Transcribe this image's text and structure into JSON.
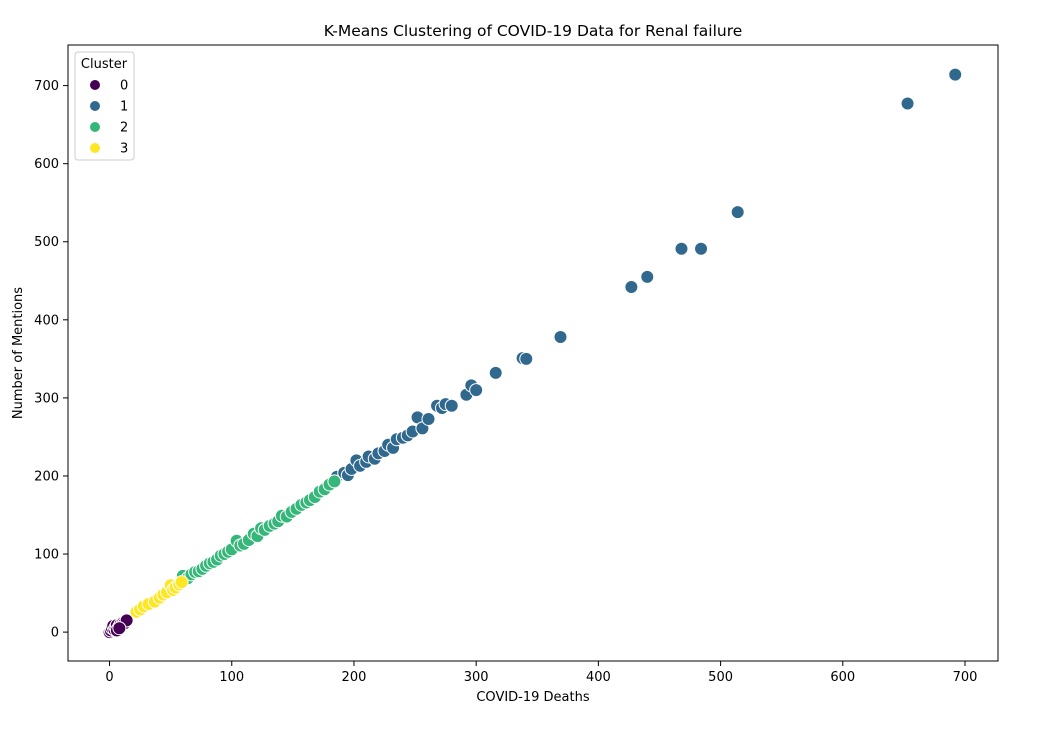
{
  "chart_data": {
    "type": "scatter",
    "title": "K-Means Clustering of COVID-19 Data for Renal failure",
    "xlabel": "COVID-19 Deaths",
    "ylabel": "Number of Mentions",
    "xlim": [
      -34,
      727
    ],
    "ylim": [
      -37,
      752
    ],
    "xticks": [
      0,
      100,
      200,
      300,
      400,
      500,
      600,
      700
    ],
    "yticks": [
      0,
      100,
      200,
      300,
      400,
      500,
      600,
      700
    ],
    "grid": false,
    "legend": {
      "title": "Cluster",
      "placement": "top-left",
      "entries": [
        "0",
        "1",
        "2",
        "3"
      ]
    },
    "colors": {
      "0": "#440154",
      "1": "#31688e",
      "2": "#35b779",
      "3": "#fde725"
    },
    "series": [
      {
        "name": "0",
        "points": [
          [
            0,
            0
          ],
          [
            1,
            2
          ],
          [
            2,
            5
          ],
          [
            3,
            8
          ],
          [
            4,
            3
          ],
          [
            5,
            6
          ],
          [
            6,
            9
          ],
          [
            7,
            4
          ],
          [
            8,
            7
          ],
          [
            9,
            10
          ],
          [
            10,
            8
          ],
          [
            11,
            12
          ],
          [
            12,
            11
          ],
          [
            14,
            15
          ],
          [
            6,
            2
          ],
          [
            8,
            5
          ]
        ]
      },
      {
        "name": "1",
        "points": [
          [
            186,
            199
          ],
          [
            192,
            204
          ],
          [
            195,
            201
          ],
          [
            198,
            209
          ],
          [
            202,
            220
          ],
          [
            205,
            213
          ],
          [
            210,
            218
          ],
          [
            212,
            225
          ],
          [
            217,
            222
          ],
          [
            220,
            229
          ],
          [
            225,
            232
          ],
          [
            228,
            240
          ],
          [
            232,
            236
          ],
          [
            235,
            247
          ],
          [
            240,
            249
          ],
          [
            244,
            252
          ],
          [
            248,
            257
          ],
          [
            252,
            275
          ],
          [
            256,
            261
          ],
          [
            261,
            273
          ],
          [
            268,
            290
          ],
          [
            272,
            287
          ],
          [
            275,
            292
          ],
          [
            280,
            290
          ],
          [
            292,
            304
          ],
          [
            296,
            316
          ],
          [
            300,
            310
          ],
          [
            316,
            332
          ],
          [
            338,
            351
          ],
          [
            341,
            350
          ],
          [
            369,
            378
          ],
          [
            427,
            442
          ],
          [
            440,
            455
          ],
          [
            468,
            491
          ],
          [
            484,
            491
          ],
          [
            514,
            538
          ],
          [
            653,
            677
          ],
          [
            692,
            714
          ]
        ]
      },
      {
        "name": "2",
        "points": [
          [
            60,
            72
          ],
          [
            64,
            69
          ],
          [
            67,
            74
          ],
          [
            70,
            77
          ],
          [
            73,
            78
          ],
          [
            76,
            81
          ],
          [
            79,
            85
          ],
          [
            82,
            88
          ],
          [
            85,
            90
          ],
          [
            88,
            93
          ],
          [
            91,
            98
          ],
          [
            94,
            100
          ],
          [
            97,
            103
          ],
          [
            100,
            106
          ],
          [
            104,
            117
          ],
          [
            107,
            111
          ],
          [
            110,
            113
          ],
          [
            114,
            118
          ],
          [
            118,
            126
          ],
          [
            121,
            123
          ],
          [
            124,
            133
          ],
          [
            127,
            131
          ],
          [
            131,
            136
          ],
          [
            135,
            139
          ],
          [
            138,
            142
          ],
          [
            141,
            149
          ],
          [
            145,
            148
          ],
          [
            149,
            154
          ],
          [
            153,
            158
          ],
          [
            157,
            163
          ],
          [
            161,
            166
          ],
          [
            164,
            169
          ],
          [
            168,
            173
          ],
          [
            172,
            180
          ],
          [
            176,
            183
          ],
          [
            180,
            189
          ],
          [
            184,
            193
          ]
        ]
      },
      {
        "name": "3",
        "points": [
          [
            22,
            26
          ],
          [
            25,
            29
          ],
          [
            28,
            33
          ],
          [
            32,
            36
          ],
          [
            37,
            39
          ],
          [
            41,
            44
          ],
          [
            44,
            48
          ],
          [
            47,
            51
          ],
          [
            50,
            60
          ],
          [
            52,
            54
          ],
          [
            54,
            57
          ],
          [
            57,
            61
          ],
          [
            59,
            64
          ]
        ]
      }
    ]
  }
}
